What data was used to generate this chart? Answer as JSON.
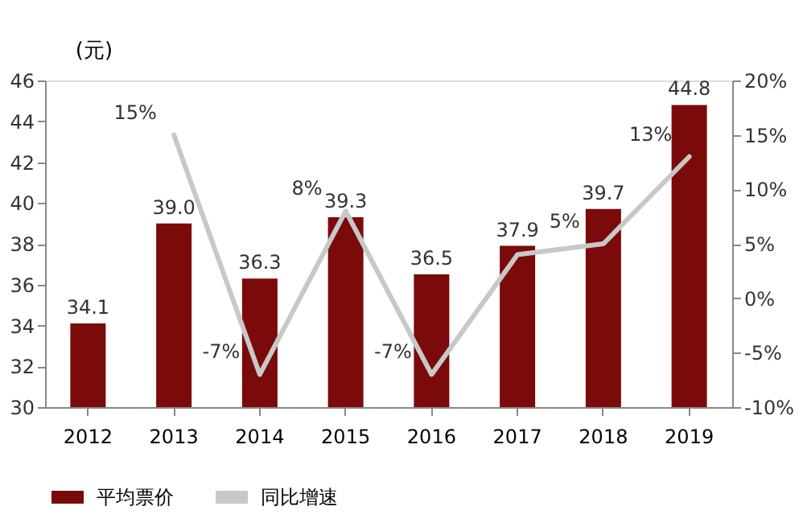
{
  "chart_data": {
    "type": "bar",
    "ylabel": "(元)",
    "categories": [
      "2012",
      "2013",
      "2014",
      "2015",
      "2016",
      "2017",
      "2018",
      "2019"
    ],
    "series": [
      {
        "name": "平均票价",
        "color": "#7b0a0a",
        "values": [
          34.1,
          39.0,
          36.3,
          39.3,
          36.5,
          37.9,
          39.7,
          44.8
        ],
        "value_labels": [
          "34.1",
          "39.0",
          "36.3",
          "39.3",
          "36.5",
          "37.9",
          "39.7",
          "44.8"
        ]
      },
      {
        "name": "同比增速",
        "type": "line",
        "axis": "y2",
        "color": "#c8c8c8",
        "values": [
          null,
          15,
          -7,
          8,
          -7,
          4,
          5,
          13
        ],
        "value_labels": [
          null,
          "15%",
          "-7%",
          "8%",
          "-7%",
          null,
          "5%",
          "13%"
        ]
      }
    ],
    "ylim": [
      30,
      46
    ],
    "yticks": [
      30,
      32,
      34,
      36,
      38,
      40,
      42,
      44,
      46
    ],
    "y2lim": [
      -10,
      20
    ],
    "y2ticks": [
      {
        "value": -10,
        "label": "-10%"
      },
      {
        "value": -5,
        "label": "-5%"
      },
      {
        "value": 0,
        "label": "0%"
      },
      {
        "value": 5,
        "label": "5%"
      },
      {
        "value": 10,
        "label": "10%"
      },
      {
        "value": 15,
        "label": "15%"
      },
      {
        "value": 20,
        "label": "20%"
      }
    ],
    "grid": false,
    "legend": "bottom",
    "marker": "none",
    "line_style": "solid"
  }
}
